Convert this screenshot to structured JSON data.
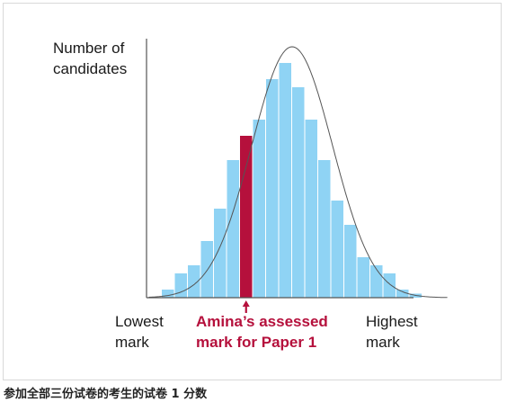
{
  "caption": "参加全部三份试卷的考生的试卷 1 分数",
  "chart_data": {
    "type": "bar",
    "ylabel": "Number of\ncandidates",
    "x_low_label": "Lowest\nmark",
    "x_high_label": "Highest\nmark",
    "highlight_label": "Amina’s assessed\nmark for Paper 1",
    "highlight_index": 6,
    "bar_count": 20,
    "values": [
      1,
      3,
      4,
      7,
      11,
      17,
      20,
      22,
      27,
      29,
      26,
      22,
      17,
      12,
      9,
      5,
      4,
      3,
      1,
      0.5
    ],
    "ylim": [
      0,
      32
    ],
    "curve": {
      "mean": 9.5,
      "sd": 3.1,
      "peak": 31
    },
    "colors": {
      "bar": "#8fd3f4",
      "highlight": "#b5103c",
      "axis": "#555555",
      "curve": "#555555",
      "label_accent": "#b5103c"
    }
  }
}
